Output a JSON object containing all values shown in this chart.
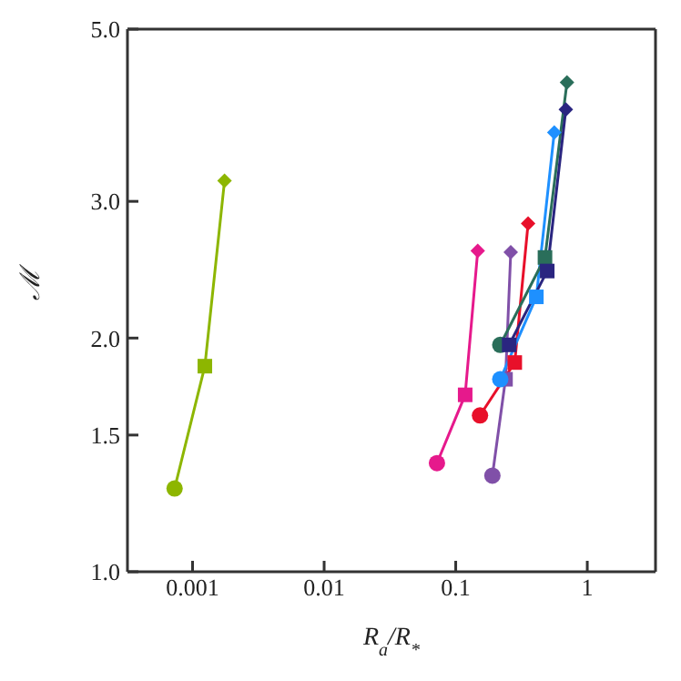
{
  "chart_data": {
    "type": "line",
    "xlabel": "R$_{a}$/R$_{*}$",
    "ylabel": "ℳ",
    "log": "xy",
    "marker": [
      "circle",
      "square",
      "diamond"
    ],
    "line_style": "solid",
    "xlim": [
      0.00032,
      3.3
    ],
    "xticks": [
      0.001,
      0.01,
      0.1,
      1
    ],
    "ylim": [
      1,
      5
    ],
    "yticks": [
      {
        "value": 1,
        "label": "1.0"
      },
      {
        "value": 1.5,
        "label": "1.5"
      },
      {
        "value": 2,
        "label": "2.0"
      },
      {
        "value": 3,
        "label": "3.0"
      },
      {
        "value": 5,
        "label": "5.0"
      }
    ],
    "series": [
      {
        "color": "#8db600",
        "x": [
          0.00073,
          0.00124,
          0.00175
        ],
        "values": [
          1.28,
          1.84,
          3.19
        ]
      },
      {
        "color": "#e6198c",
        "x": [
          0.072,
          0.118,
          0.147
        ],
        "values": [
          1.38,
          1.69,
          2.59
        ]
      },
      {
        "color": "#8050a8",
        "x": [
          0.19,
          0.239,
          0.262
        ],
        "values": [
          1.33,
          1.77,
          2.58
        ]
      },
      {
        "color": "#e8102a",
        "x": [
          0.153,
          0.281,
          0.355
        ],
        "values": [
          1.59,
          1.86,
          2.81
        ]
      },
      {
        "color": "#1e90ff",
        "x": [
          0.218,
          0.41,
          0.561
        ],
        "values": [
          1.77,
          2.26,
          3.68
        ]
      },
      {
        "color": "#2a6e5a",
        "x": [
          0.218,
          0.477,
          0.701
        ],
        "values": [
          1.96,
          2.54,
          4.27
        ]
      },
      {
        "color": "#2a2580",
        "marker": [
          "square",
          "square",
          "diamond"
        ],
        "x": [
          0.255,
          0.496,
          0.687
        ],
        "values": [
          1.96,
          2.44,
          3.94
        ]
      }
    ]
  }
}
